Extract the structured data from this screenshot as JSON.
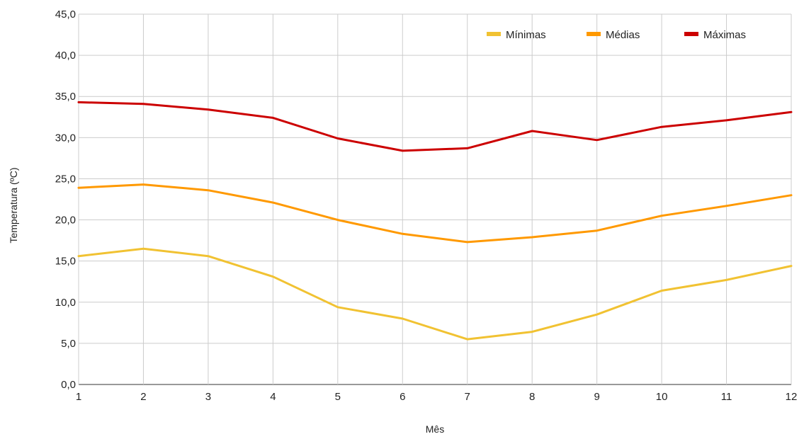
{
  "chart_data": {
    "type": "line",
    "title": "",
    "xlabel": "Mês",
    "ylabel": "Temperatura (ºC)",
    "x": [
      1,
      2,
      3,
      4,
      5,
      6,
      7,
      8,
      9,
      10,
      11,
      12
    ],
    "x_tick_labels": [
      "1",
      "2",
      "3",
      "4",
      "5",
      "6",
      "7",
      "8",
      "9",
      "10",
      "11",
      "12"
    ],
    "ylim": [
      0,
      45
    ],
    "y_ticks": [
      0,
      5,
      10,
      15,
      20,
      25,
      30,
      35,
      40,
      45
    ],
    "y_tick_labels": [
      "0,0",
      "5,0",
      "10,0",
      "15,0",
      "20,0",
      "25,0",
      "30,0",
      "35,0",
      "40,0",
      "45,0"
    ],
    "grid": true,
    "legend_position": "top-right",
    "series": [
      {
        "name": "Mínimas",
        "color": "#f1c232",
        "values": [
          15.6,
          16.5,
          15.6,
          13.1,
          9.4,
          8.0,
          5.5,
          6.4,
          8.5,
          11.4,
          12.7,
          14.4
        ]
      },
      {
        "name": "Médias",
        "color": "#ff9900",
        "values": [
          23.9,
          24.3,
          23.6,
          22.1,
          20.0,
          18.3,
          17.3,
          17.9,
          18.7,
          20.5,
          21.7,
          23.0
        ]
      },
      {
        "name": "Máximas",
        "color": "#cc0000",
        "values": [
          34.3,
          34.1,
          33.4,
          32.4,
          29.9,
          28.4,
          28.7,
          30.8,
          29.7,
          31.3,
          32.1,
          33.1
        ]
      }
    ]
  }
}
